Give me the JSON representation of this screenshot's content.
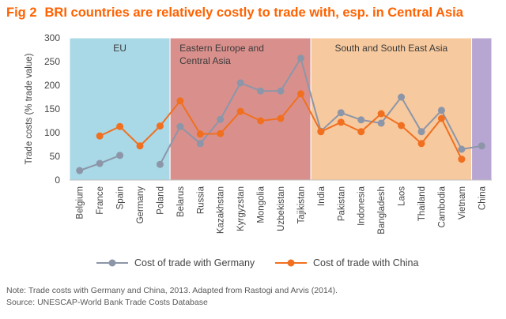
{
  "header": {
    "fig_label": "Fig 2",
    "title": "BRI countries are relatively costly to trade with, esp. in Central Asia"
  },
  "notes": {
    "note": "Note: Trade costs with Germany and China, 2013. Adapted from Rastogi and Arvis (2014).",
    "source": "Source: UNESCAP-World Bank Trade Costs Database"
  },
  "colors": {
    "title": "#ff6200",
    "germany": "#8c96a8",
    "china": "#f07020",
    "eu_band": "#a9d8e6",
    "ee_band": "#d9908c",
    "asia_band": "#f7c99e",
    "china_band": "#b7a6d1"
  },
  "chart_data": {
    "type": "line",
    "title": "BRI countries are relatively costly to trade with, esp. in Central Asia",
    "ylabel": "Trade costs (% trade value)",
    "xlabel": "",
    "ylim": [
      0,
      300
    ],
    "yticks": [
      0,
      50,
      100,
      150,
      200,
      250,
      300
    ],
    "grid": false,
    "categories": [
      "Belgium",
      "France",
      "Spain",
      "Germany",
      "Poland",
      "Belarus",
      "Russia",
      "Kazakhstan",
      "Kyrgyzstan",
      "Mongolia",
      "Uzbekistan",
      "Tajikistan",
      "India",
      "Pakistan",
      "Indonesia",
      "Bangladesh",
      "Laos",
      "Thailand",
      "Cambodia",
      "Vietnam",
      "China"
    ],
    "regions": [
      {
        "name": "EU",
        "lines": [
          "EU"
        ],
        "start": 0,
        "end": 4,
        "color_key": "eu_band"
      },
      {
        "name": "Eastern Europe and Central Asia",
        "lines": [
          "Eastern Europe and",
          "Central Asia"
        ],
        "start": 5,
        "end": 11,
        "color_key": "ee_band"
      },
      {
        "name": "South and South East Asia",
        "lines": [
          "South and South East Asia"
        ],
        "start": 12,
        "end": 19,
        "color_key": "asia_band"
      },
      {
        "name": "",
        "lines": [],
        "start": 20,
        "end": 20,
        "color_key": "china_band"
      }
    ],
    "series": [
      {
        "name": "Cost of trade with Germany",
        "color_key": "germany",
        "values": [
          20,
          35,
          52,
          null,
          33,
          113,
          77,
          128,
          205,
          188,
          188,
          257,
          103,
          142,
          127,
          120,
          175,
          102,
          147,
          65,
          72
        ]
      },
      {
        "name": "Cost of trade with China",
        "color_key": "china",
        "values": [
          null,
          93,
          113,
          72,
          114,
          167,
          97,
          98,
          145,
          125,
          130,
          182,
          102,
          122,
          102,
          140,
          115,
          77,
          130,
          44,
          null
        ]
      }
    ],
    "legend": {
      "position": "bottom"
    }
  }
}
